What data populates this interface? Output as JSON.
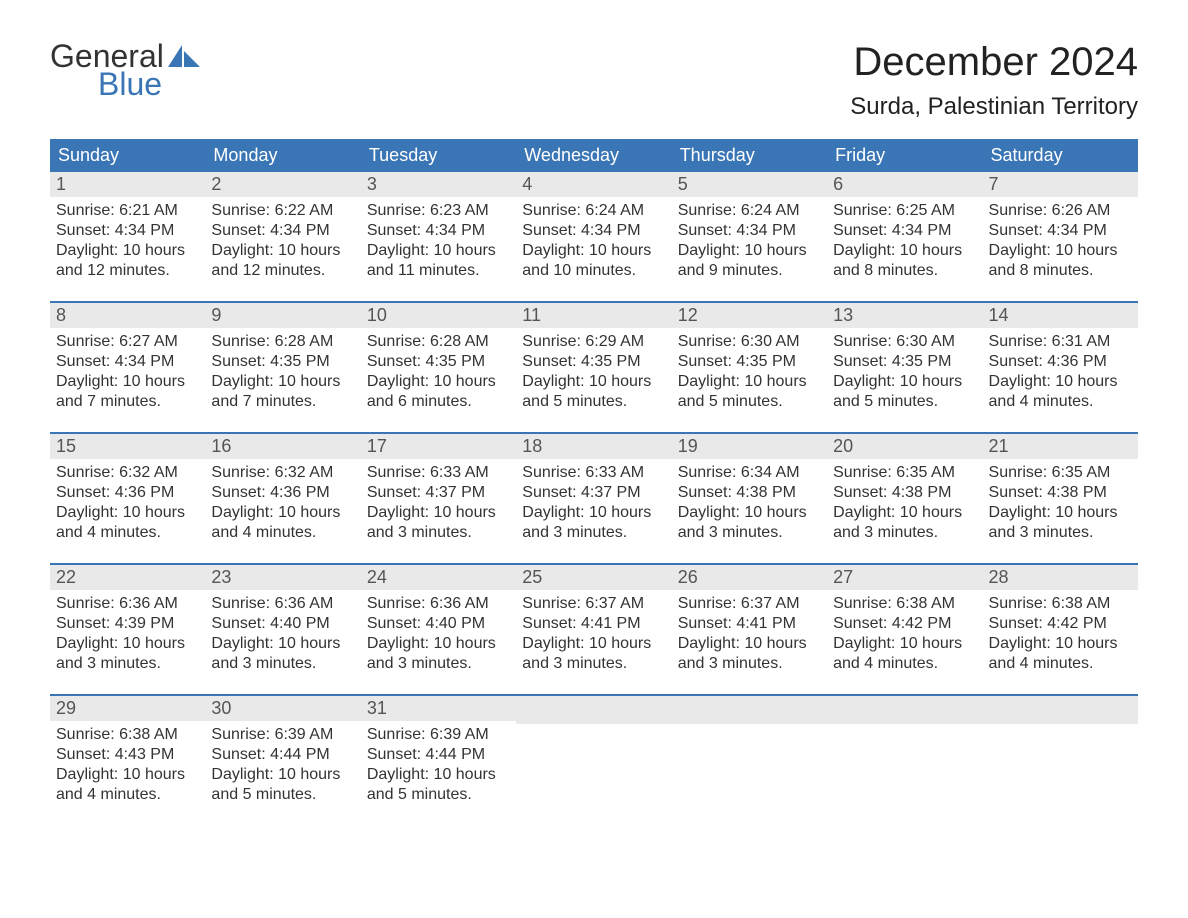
{
  "brand": {
    "general": "General",
    "blue": "Blue"
  },
  "title": "December 2024",
  "location": "Surda, Palestinian Territory",
  "colors": {
    "header_bg": "#3a75b5",
    "header_text": "#ffffff",
    "daynum_bg": "#e9e9e9",
    "week_border": "#3a75b5",
    "text": "#333333",
    "background": "#ffffff"
  },
  "layout": {
    "columns": 7,
    "rows": 5,
    "font_family": "Arial",
    "title_fontsize": 40,
    "location_fontsize": 24,
    "weekday_fontsize": 18,
    "daynum_fontsize": 18,
    "body_fontsize": 16
  },
  "weekdays": [
    "Sunday",
    "Monday",
    "Tuesday",
    "Wednesday",
    "Thursday",
    "Friday",
    "Saturday"
  ],
  "days": [
    {
      "n": "1",
      "sunrise": "Sunrise: 6:21 AM",
      "sunset": "Sunset: 4:34 PM",
      "d1": "Daylight: 10 hours",
      "d2": "and 12 minutes."
    },
    {
      "n": "2",
      "sunrise": "Sunrise: 6:22 AM",
      "sunset": "Sunset: 4:34 PM",
      "d1": "Daylight: 10 hours",
      "d2": "and 12 minutes."
    },
    {
      "n": "3",
      "sunrise": "Sunrise: 6:23 AM",
      "sunset": "Sunset: 4:34 PM",
      "d1": "Daylight: 10 hours",
      "d2": "and 11 minutes."
    },
    {
      "n": "4",
      "sunrise": "Sunrise: 6:24 AM",
      "sunset": "Sunset: 4:34 PM",
      "d1": "Daylight: 10 hours",
      "d2": "and 10 minutes."
    },
    {
      "n": "5",
      "sunrise": "Sunrise: 6:24 AM",
      "sunset": "Sunset: 4:34 PM",
      "d1": "Daylight: 10 hours",
      "d2": "and 9 minutes."
    },
    {
      "n": "6",
      "sunrise": "Sunrise: 6:25 AM",
      "sunset": "Sunset: 4:34 PM",
      "d1": "Daylight: 10 hours",
      "d2": "and 8 minutes."
    },
    {
      "n": "7",
      "sunrise": "Sunrise: 6:26 AM",
      "sunset": "Sunset: 4:34 PM",
      "d1": "Daylight: 10 hours",
      "d2": "and 8 minutes."
    },
    {
      "n": "8",
      "sunrise": "Sunrise: 6:27 AM",
      "sunset": "Sunset: 4:34 PM",
      "d1": "Daylight: 10 hours",
      "d2": "and 7 minutes."
    },
    {
      "n": "9",
      "sunrise": "Sunrise: 6:28 AM",
      "sunset": "Sunset: 4:35 PM",
      "d1": "Daylight: 10 hours",
      "d2": "and 7 minutes."
    },
    {
      "n": "10",
      "sunrise": "Sunrise: 6:28 AM",
      "sunset": "Sunset: 4:35 PM",
      "d1": "Daylight: 10 hours",
      "d2": "and 6 minutes."
    },
    {
      "n": "11",
      "sunrise": "Sunrise: 6:29 AM",
      "sunset": "Sunset: 4:35 PM",
      "d1": "Daylight: 10 hours",
      "d2": "and 5 minutes."
    },
    {
      "n": "12",
      "sunrise": "Sunrise: 6:30 AM",
      "sunset": "Sunset: 4:35 PM",
      "d1": "Daylight: 10 hours",
      "d2": "and 5 minutes."
    },
    {
      "n": "13",
      "sunrise": "Sunrise: 6:30 AM",
      "sunset": "Sunset: 4:35 PM",
      "d1": "Daylight: 10 hours",
      "d2": "and 5 minutes."
    },
    {
      "n": "14",
      "sunrise": "Sunrise: 6:31 AM",
      "sunset": "Sunset: 4:36 PM",
      "d1": "Daylight: 10 hours",
      "d2": "and 4 minutes."
    },
    {
      "n": "15",
      "sunrise": "Sunrise: 6:32 AM",
      "sunset": "Sunset: 4:36 PM",
      "d1": "Daylight: 10 hours",
      "d2": "and 4 minutes."
    },
    {
      "n": "16",
      "sunrise": "Sunrise: 6:32 AM",
      "sunset": "Sunset: 4:36 PM",
      "d1": "Daylight: 10 hours",
      "d2": "and 4 minutes."
    },
    {
      "n": "17",
      "sunrise": "Sunrise: 6:33 AM",
      "sunset": "Sunset: 4:37 PM",
      "d1": "Daylight: 10 hours",
      "d2": "and 3 minutes."
    },
    {
      "n": "18",
      "sunrise": "Sunrise: 6:33 AM",
      "sunset": "Sunset: 4:37 PM",
      "d1": "Daylight: 10 hours",
      "d2": "and 3 minutes."
    },
    {
      "n": "19",
      "sunrise": "Sunrise: 6:34 AM",
      "sunset": "Sunset: 4:38 PM",
      "d1": "Daylight: 10 hours",
      "d2": "and 3 minutes."
    },
    {
      "n": "20",
      "sunrise": "Sunrise: 6:35 AM",
      "sunset": "Sunset: 4:38 PM",
      "d1": "Daylight: 10 hours",
      "d2": "and 3 minutes."
    },
    {
      "n": "21",
      "sunrise": "Sunrise: 6:35 AM",
      "sunset": "Sunset: 4:38 PM",
      "d1": "Daylight: 10 hours",
      "d2": "and 3 minutes."
    },
    {
      "n": "22",
      "sunrise": "Sunrise: 6:36 AM",
      "sunset": "Sunset: 4:39 PM",
      "d1": "Daylight: 10 hours",
      "d2": "and 3 minutes."
    },
    {
      "n": "23",
      "sunrise": "Sunrise: 6:36 AM",
      "sunset": "Sunset: 4:40 PM",
      "d1": "Daylight: 10 hours",
      "d2": "and 3 minutes."
    },
    {
      "n": "24",
      "sunrise": "Sunrise: 6:36 AM",
      "sunset": "Sunset: 4:40 PM",
      "d1": "Daylight: 10 hours",
      "d2": "and 3 minutes."
    },
    {
      "n": "25",
      "sunrise": "Sunrise: 6:37 AM",
      "sunset": "Sunset: 4:41 PM",
      "d1": "Daylight: 10 hours",
      "d2": "and 3 minutes."
    },
    {
      "n": "26",
      "sunrise": "Sunrise: 6:37 AM",
      "sunset": "Sunset: 4:41 PM",
      "d1": "Daylight: 10 hours",
      "d2": "and 3 minutes."
    },
    {
      "n": "27",
      "sunrise": "Sunrise: 6:38 AM",
      "sunset": "Sunset: 4:42 PM",
      "d1": "Daylight: 10 hours",
      "d2": "and 4 minutes."
    },
    {
      "n": "28",
      "sunrise": "Sunrise: 6:38 AM",
      "sunset": "Sunset: 4:42 PM",
      "d1": "Daylight: 10 hours",
      "d2": "and 4 minutes."
    },
    {
      "n": "29",
      "sunrise": "Sunrise: 6:38 AM",
      "sunset": "Sunset: 4:43 PM",
      "d1": "Daylight: 10 hours",
      "d2": "and 4 minutes."
    },
    {
      "n": "30",
      "sunrise": "Sunrise: 6:39 AM",
      "sunset": "Sunset: 4:44 PM",
      "d1": "Daylight: 10 hours",
      "d2": "and 5 minutes."
    },
    {
      "n": "31",
      "sunrise": "Sunrise: 6:39 AM",
      "sunset": "Sunset: 4:44 PM",
      "d1": "Daylight: 10 hours",
      "d2": "and 5 minutes."
    }
  ]
}
